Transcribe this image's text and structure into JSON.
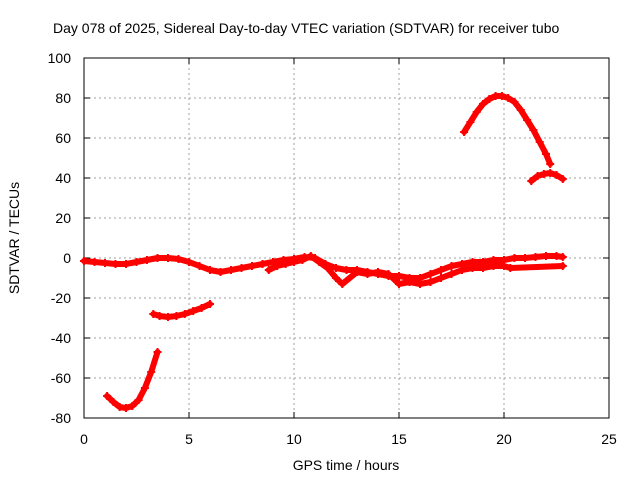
{
  "chart_data": {
    "type": "scatter",
    "title": "Day 078 of 2025, Sidereal Day-to-day VTEC variation (SDTVAR) for receiver tubo",
    "xlabel": "GPS time / hours",
    "ylabel": "SDTVAR / TECUs",
    "xlim": [
      0,
      25
    ],
    "ylim": [
      -80,
      100
    ],
    "xticks": [
      "0",
      "5",
      "10",
      "15",
      "20",
      "25"
    ],
    "yticks": [
      "-80",
      "-60",
      "-40",
      "-20",
      "0",
      "20",
      "40",
      "60",
      "80",
      "100"
    ],
    "xtick_values": [
      0,
      5,
      10,
      15,
      20,
      25
    ],
    "ytick_values": [
      -80,
      -60,
      -40,
      -20,
      0,
      20,
      40,
      60,
      80,
      100
    ],
    "grid": true,
    "marker_color": "#ff0000",
    "series": [
      {
        "name": "near-zero band A",
        "points": [
          [
            0,
            -1.5
          ],
          [
            0.5,
            -2
          ],
          [
            1,
            -2.5
          ],
          [
            1.5,
            -3
          ],
          [
            2,
            -3
          ],
          [
            2.5,
            -2
          ],
          [
            3,
            -1
          ],
          [
            3.5,
            0
          ],
          [
            4,
            0
          ],
          [
            4.5,
            -0.5
          ],
          [
            5,
            -2
          ],
          [
            5.5,
            -4
          ],
          [
            6,
            -6
          ],
          [
            6.5,
            -7
          ],
          [
            7,
            -6
          ],
          [
            7.5,
            -5
          ],
          [
            8,
            -4
          ],
          [
            8.5,
            -3
          ],
          [
            9,
            -2
          ],
          [
            9.5,
            -1
          ],
          [
            10,
            -0.5
          ],
          [
            10.5,
            0.5
          ],
          [
            11,
            0
          ],
          [
            11.5,
            -3
          ],
          [
            12,
            -5
          ],
          [
            12.5,
            -6
          ],
          [
            13,
            -6
          ],
          [
            13.5,
            -7
          ],
          [
            14,
            -8
          ],
          [
            14.5,
            -9
          ],
          [
            15,
            -9
          ],
          [
            15.5,
            -10
          ],
          [
            16,
            -10
          ],
          [
            16.5,
            -8
          ],
          [
            17,
            -6
          ],
          [
            17.5,
            -4
          ],
          [
            18,
            -3
          ],
          [
            18.5,
            -2
          ],
          [
            19,
            -2
          ],
          [
            19.5,
            -1
          ],
          [
            20,
            -1
          ],
          [
            20.5,
            0
          ],
          [
            21,
            0
          ],
          [
            21.5,
            0.5
          ],
          [
            22,
            1
          ],
          [
            22.5,
            1
          ],
          [
            22.8,
            0.5
          ]
        ]
      },
      {
        "name": "near-zero band B",
        "points": [
          [
            8.8,
            -6
          ],
          [
            9.2,
            -4
          ],
          [
            9.6,
            -3
          ],
          [
            10,
            -2
          ],
          [
            10.4,
            -1
          ],
          [
            10.8,
            1
          ],
          [
            11.2,
            -2
          ],
          [
            11.6,
            -5
          ],
          [
            12,
            -10
          ],
          [
            12.3,
            -13
          ],
          [
            13,
            -7
          ],
          [
            13.5,
            -8
          ],
          [
            14,
            -7
          ],
          [
            14.5,
            -8
          ],
          [
            15,
            -13
          ],
          [
            15.5,
            -12
          ],
          [
            16,
            -13
          ],
          [
            16.5,
            -12
          ],
          [
            17,
            -10
          ],
          [
            17.5,
            -8
          ],
          [
            18,
            -6
          ],
          [
            18.5,
            -5
          ],
          [
            19,
            -5
          ],
          [
            19.5,
            -4
          ],
          [
            20,
            -4
          ],
          [
            20.3,
            -5
          ],
          [
            22.8,
            -4
          ]
        ]
      },
      {
        "name": "arc 1",
        "points": [
          [
            1.1,
            -69
          ],
          [
            1.4,
            -72
          ],
          [
            1.7,
            -74.5
          ],
          [
            2,
            -75
          ],
          [
            2.3,
            -74
          ],
          [
            2.6,
            -71
          ],
          [
            2.9,
            -65
          ],
          [
            3.2,
            -57
          ],
          [
            3.5,
            -47
          ]
        ]
      },
      {
        "name": "arc 2",
        "points": [
          [
            3.3,
            -28
          ],
          [
            3.6,
            -29
          ],
          [
            4,
            -29.5
          ],
          [
            4.4,
            -29
          ],
          [
            4.8,
            -28
          ],
          [
            5.2,
            -26.5
          ],
          [
            5.6,
            -25
          ],
          [
            6,
            -23
          ]
        ]
      },
      {
        "name": "arc 3",
        "points": [
          [
            18.1,
            63
          ],
          [
            18.4,
            68
          ],
          [
            18.7,
            73
          ],
          [
            19,
            77
          ],
          [
            19.3,
            79.5
          ],
          [
            19.6,
            81
          ],
          [
            19.9,
            81
          ],
          [
            20.2,
            80
          ],
          [
            20.5,
            78
          ],
          [
            20.8,
            74
          ],
          [
            21.1,
            69
          ],
          [
            21.4,
            64
          ],
          [
            21.7,
            58
          ],
          [
            22,
            52
          ],
          [
            22.2,
            47
          ]
        ]
      },
      {
        "name": "arc 4",
        "points": [
          [
            21.3,
            38.5
          ],
          [
            21.6,
            41
          ],
          [
            21.9,
            42
          ],
          [
            22.2,
            42.5
          ],
          [
            22.5,
            41.5
          ],
          [
            22.8,
            39.5
          ]
        ]
      }
    ]
  }
}
